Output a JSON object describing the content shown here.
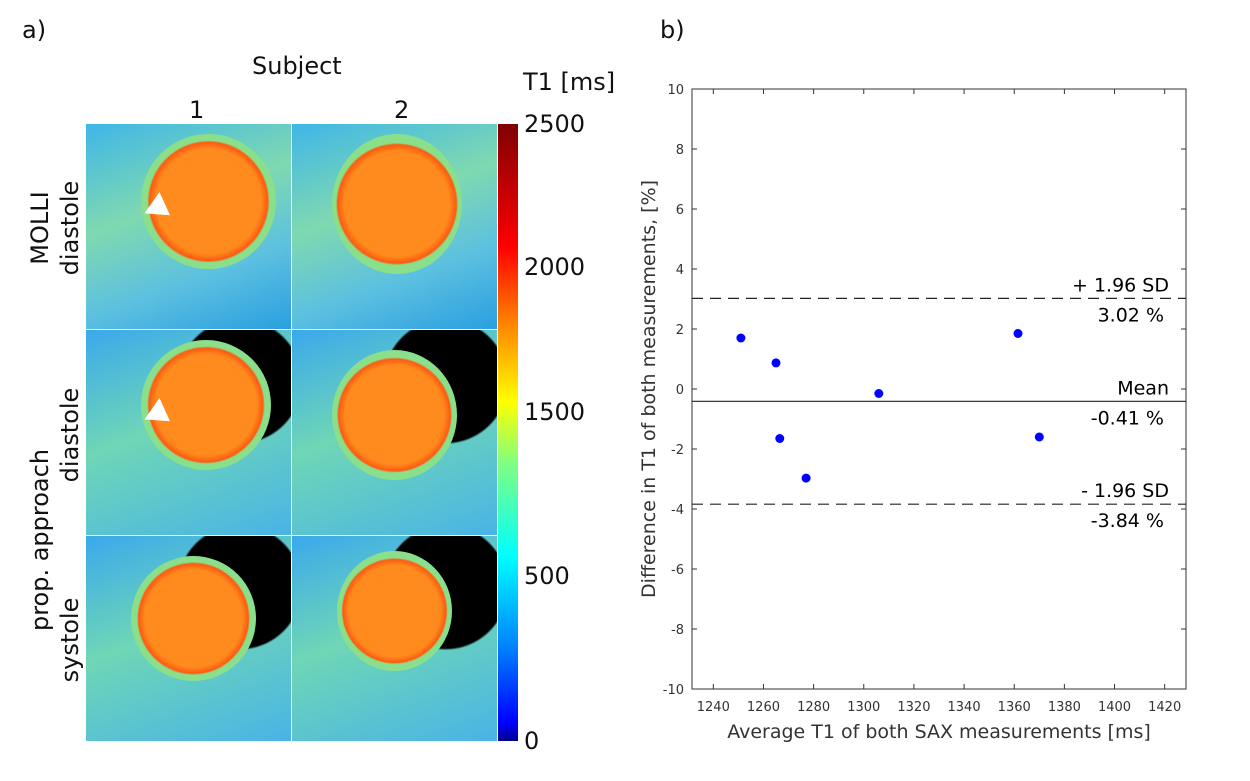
{
  "panel_a": {
    "label": "a)",
    "subject_title": "Subject",
    "subjects": [
      "1",
      "2"
    ],
    "colorbar_title": "T1 [ms]",
    "colorbar_ticks": [
      "2500",
      "2000",
      "1500",
      "500",
      "0"
    ],
    "row_groups": [
      "MOLLI",
      "prop. approach"
    ],
    "rows": [
      "diastole",
      "diastole",
      "systole"
    ]
  },
  "panel_b": {
    "label": "b)"
  },
  "chart_data": {
    "type": "scatter",
    "title": "",
    "xlabel": "Average T1 of both SAX measurements [ms]",
    "ylabel": "Difference in T1 of both measurements, [%]",
    "xlim": [
      1231.5,
      1428.5
    ],
    "ylim": [
      -10,
      10
    ],
    "xticks": [
      1240,
      1260,
      1280,
      1300,
      1320,
      1340,
      1360,
      1380,
      1400,
      1420
    ],
    "yticks": [
      -10,
      -8,
      -6,
      -4,
      -2,
      0,
      2,
      4,
      6,
      8,
      10
    ],
    "points": [
      {
        "x": 1251,
        "y": 1.7
      },
      {
        "x": 1265,
        "y": 0.87
      },
      {
        "x": 1266.5,
        "y": -1.65
      },
      {
        "x": 1277,
        "y": -2.97
      },
      {
        "x": 1306,
        "y": -0.15
      },
      {
        "x": 1361.5,
        "y": 1.85
      },
      {
        "x": 1370,
        "y": -1.6
      }
    ],
    "point_color": "#0000ff",
    "lines": [
      {
        "name": "upper-loa",
        "y": 3.02,
        "style": "dashed",
        "label": "+ 1.96 SD",
        "value_label": "3.02 %"
      },
      {
        "name": "mean",
        "y": -0.41,
        "style": "solid",
        "label": "Mean",
        "value_label": "-0.41 %"
      },
      {
        "name": "lower-loa",
        "y": -3.84,
        "style": "dashed",
        "label": "- 1.96 SD",
        "value_label": "-3.84 %"
      }
    ],
    "grid": false
  }
}
